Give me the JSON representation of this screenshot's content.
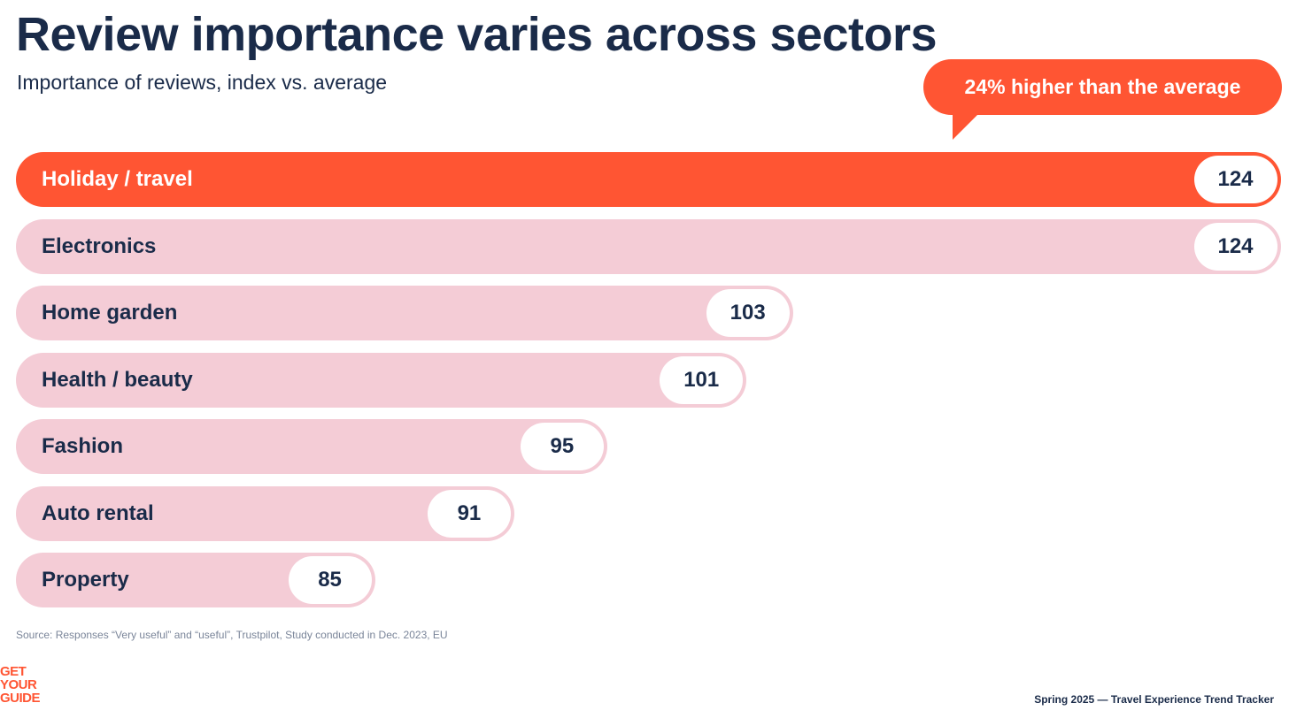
{
  "chart_data": {
    "type": "bar",
    "orientation": "horizontal",
    "title": "Review importance varies across sectors",
    "subtitle": "Importance of reviews, index vs. average",
    "categories": [
      "Holiday / travel",
      "Electronics",
      "Home garden",
      "Health / beauty",
      "Fashion",
      "Auto rental",
      "Property"
    ],
    "values": [
      124,
      124,
      103,
      101,
      95,
      91,
      85
    ],
    "highlight": "Holiday / travel",
    "annotation": "24% higher than the average",
    "xlabel": "",
    "ylabel": "",
    "colors": {
      "highlight": "#ff5533",
      "default": "#f4ccd6",
      "text": "#1a2b49"
    }
  },
  "source": "Source: Responses “Very useful” and “useful”, Trustpilot, Study conducted in Dec. 2023, EU",
  "logo": "GET YOUR GUIDE",
  "footer": "Spring 2025 — Travel Experience Trend Tracker"
}
